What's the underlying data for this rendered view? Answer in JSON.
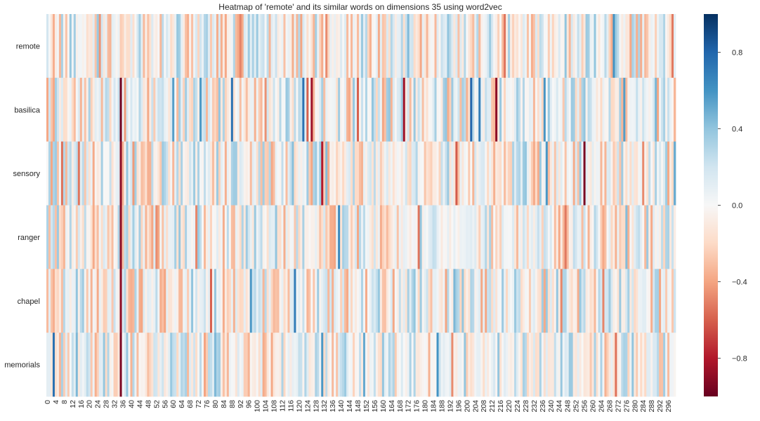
{
  "chart_data": {
    "type": "heatmap",
    "title": "Heatmap of 'remote' and its similar words on dimensions 35 using word2vec",
    "xlabel": "",
    "ylabel": "",
    "rows": [
      "remote",
      "basilica",
      "sensory",
      "ranger",
      "chapel",
      "memorials"
    ],
    "num_columns": 300,
    "x_tick_labels": [
      "0",
      "4",
      "8",
      "12",
      "16",
      "20",
      "24",
      "28",
      "32",
      "36",
      "40",
      "44",
      "48",
      "52",
      "56",
      "60",
      "64",
      "68",
      "72",
      "76",
      "80",
      "84",
      "88",
      "92",
      "96",
      "100",
      "104",
      "108",
      "112",
      "116",
      "120",
      "124",
      "128",
      "132",
      "136",
      "140",
      "144",
      "148",
      "152",
      "156",
      "160",
      "164",
      "168",
      "172",
      "176",
      "180",
      "184",
      "188",
      "192",
      "196",
      "200",
      "204",
      "208",
      "212",
      "216",
      "220",
      "224",
      "228",
      "232",
      "236",
      "240",
      "244",
      "248",
      "252",
      "256",
      "260",
      "264",
      "268",
      "272",
      "276",
      "280",
      "284",
      "288",
      "292",
      "296"
    ],
    "x_tick_step": 4,
    "colormap": "RdBu",
    "vmin": -1.0,
    "vmax": 1.0,
    "colorbar_ticks": [
      0.8,
      0.4,
      0.0,
      -0.4,
      -0.8
    ],
    "colorbar_tick_labels": [
      "0.8",
      "0.4",
      "0.0",
      "−0.4",
      "−0.8"
    ],
    "highlighted_cells": [
      {
        "row": "remote",
        "col": 25,
        "value": -0.45
      },
      {
        "row": "remote",
        "col": 92,
        "value": -0.5
      },
      {
        "row": "basilica",
        "col": 35,
        "value": -0.98
      },
      {
        "row": "basilica",
        "col": 88,
        "value": 0.75
      },
      {
        "row": "basilica",
        "col": 122,
        "value": 0.75
      },
      {
        "row": "basilica",
        "col": 126,
        "value": -0.85
      },
      {
        "row": "basilica",
        "col": 148,
        "value": -0.6
      },
      {
        "row": "basilica",
        "col": 170,
        "value": -0.85
      },
      {
        "row": "basilica",
        "col": 202,
        "value": 0.8
      },
      {
        "row": "basilica",
        "col": 206,
        "value": 0.7
      },
      {
        "row": "basilica",
        "col": 214,
        "value": -0.9
      },
      {
        "row": "sensory",
        "col": 35,
        "value": -0.9
      },
      {
        "row": "sensory",
        "col": 131,
        "value": -0.8
      },
      {
        "row": "sensory",
        "col": 256,
        "value": -0.95
      },
      {
        "row": "ranger",
        "col": 35,
        "value": -0.9
      },
      {
        "row": "ranger",
        "col": 139,
        "value": 0.65
      },
      {
        "row": "chapel",
        "col": 35,
        "value": -0.9
      },
      {
        "row": "chapel",
        "col": 118,
        "value": 0.7
      },
      {
        "row": "memorials",
        "col": 3,
        "value": 0.75
      },
      {
        "row": "memorials",
        "col": 35,
        "value": -0.95
      },
      {
        "row": "memorials",
        "col": 186,
        "value": 0.6
      },
      {
        "row": "memorials",
        "col": 271,
        "value": -0.55
      }
    ],
    "grid": false,
    "legend": "colorbar-right"
  }
}
